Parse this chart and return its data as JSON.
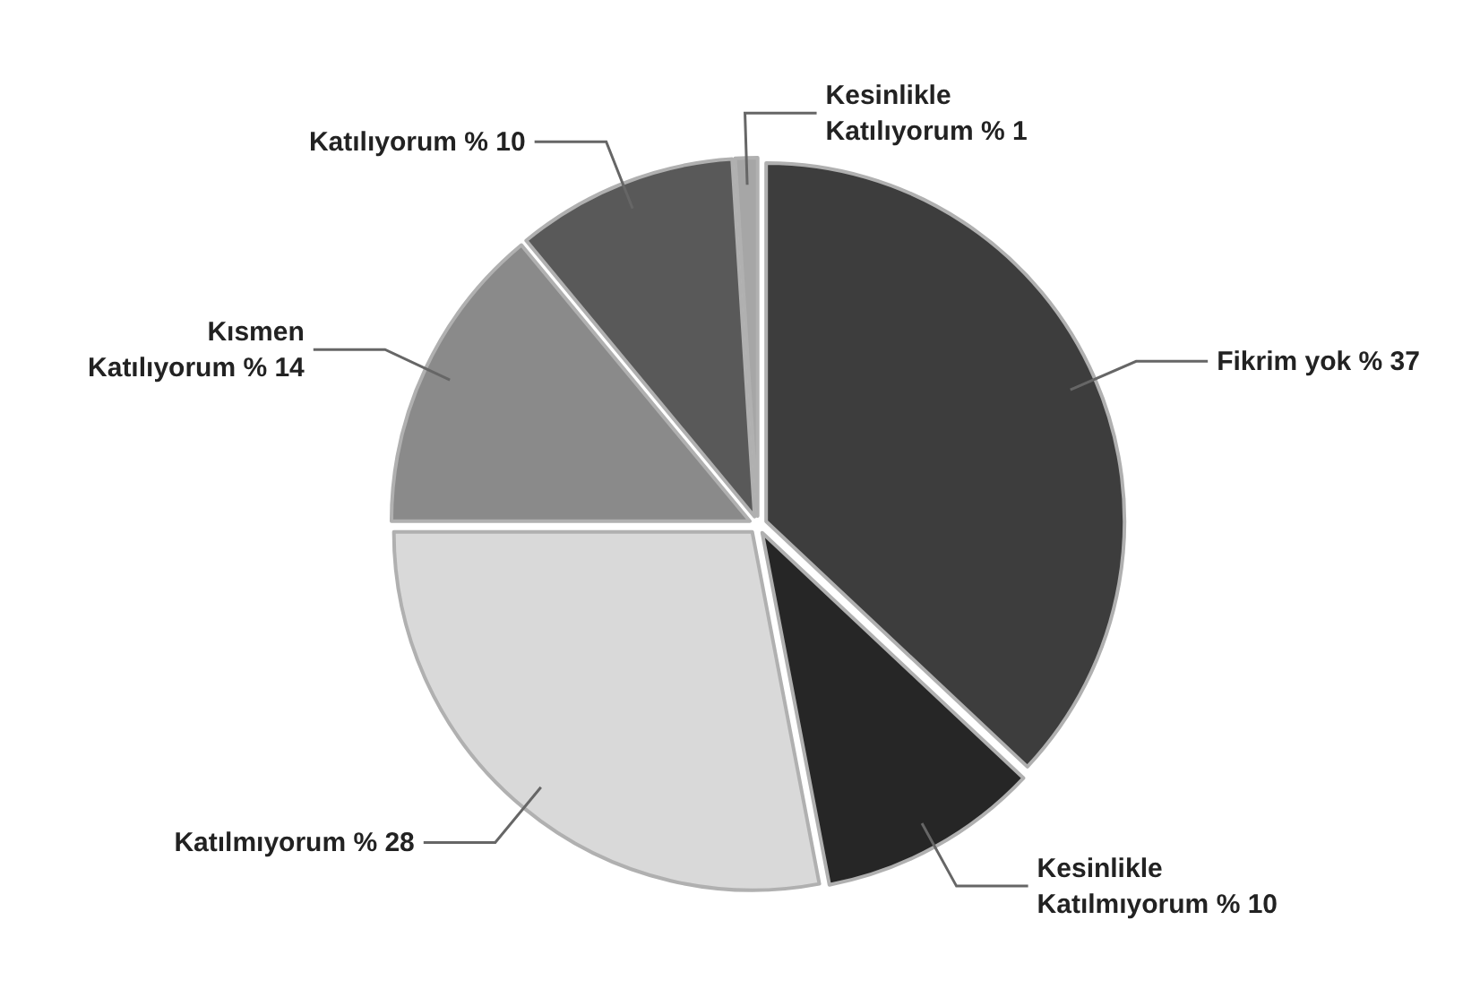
{
  "chart_data": {
    "type": "pie",
    "categories": [
      "Fikrim yok",
      "Kesinlikle\nKatılmıyorum",
      "Katılmıyorum",
      "Kısmen\nKatılıyorum",
      "Katılıyorum",
      "Kesinlikle\nKatılıyorum"
    ],
    "values": [
      37,
      10,
      28,
      14,
      10,
      1
    ],
    "value_labels": [
      "% 37",
      "% 10",
      "% 28",
      "% 14",
      "% 10",
      "% 1"
    ],
    "colors": [
      "#3d3d3d",
      "#262626",
      "#d9d9d9",
      "#8a8a8a",
      "#595959",
      "#a6a6a6"
    ]
  }
}
